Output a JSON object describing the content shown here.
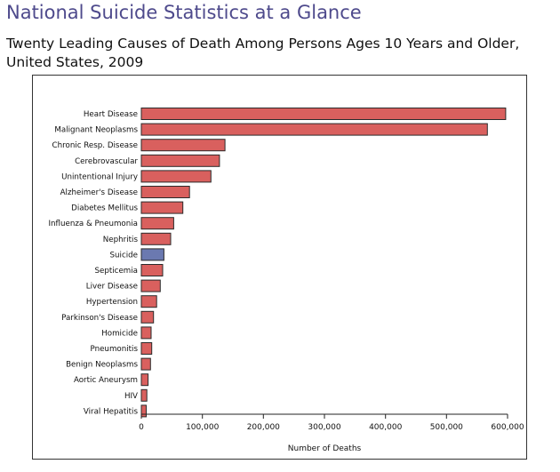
{
  "page": {
    "title": "National Suicide Statistics at a Glance",
    "chart_heading": "Twenty Leading Causes of Death Among Persons Ages 10 Years and Older, United States, 2009"
  },
  "colors": {
    "bar_default": "#d9605e",
    "bar_highlight": "#6b79b0",
    "bar_outline": "#2b2b2b",
    "title": "#4e4a8c"
  },
  "chart_data": {
    "type": "bar",
    "orientation": "horizontal",
    "title": "Twenty Leading Causes of Death Among Persons Ages 10 Years and Older, United States, 2009",
    "xlabel": "Number of Deaths",
    "ylabel": "",
    "xlim": [
      0,
      600000
    ],
    "ticks": [
      0,
      100000,
      200000,
      300000,
      400000,
      500000,
      600000
    ],
    "tick_labels": [
      "0",
      "100,000",
      "200,000",
      "300,000",
      "400,000",
      "500,000",
      "600,000"
    ],
    "highlight_category": "Suicide",
    "categories": [
      "Heart Disease",
      "Malignant Neoplasms",
      "Chronic Resp. Disease",
      "Cerebrovascular",
      "Unintentional Injury",
      "Alzheimer's Disease",
      "Diabetes Mellitus",
      "Influenza & Pneumonia",
      "Nephritis",
      "Suicide",
      "Septicemia",
      "Liver Disease",
      "Hypertension",
      "Parkinson's Disease",
      "Homicide",
      "Pneumonitis",
      "Benign Neoplasms",
      "Aortic Aneurysm",
      "HIV",
      "Viral Hepatitis"
    ],
    "values": [
      597000,
      567000,
      137000,
      128000,
      114000,
      79000,
      68000,
      53000,
      48000,
      37000,
      35000,
      31000,
      25000,
      20000,
      16000,
      17000,
      15000,
      11000,
      9000,
      8000
    ]
  }
}
